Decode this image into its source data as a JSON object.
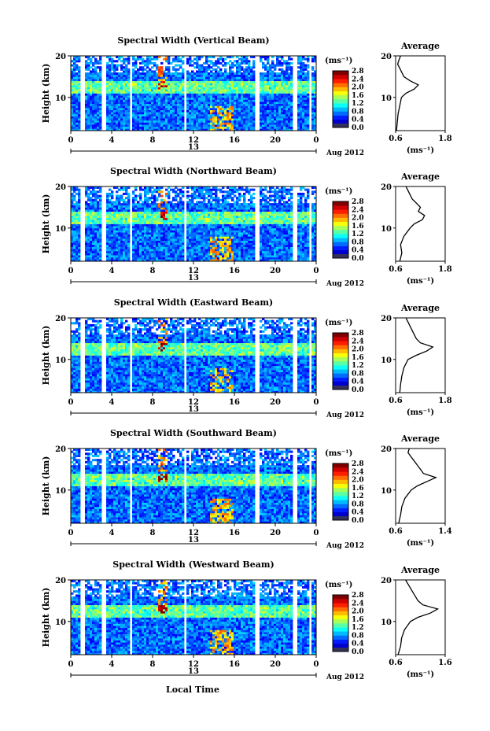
{
  "x_axis_label": "Local Time",
  "colorbar": {
    "unit": "(ms⁻¹)",
    "ticks": [
      "0.0",
      "0.4",
      "0.8",
      "1.2",
      "1.6",
      "2.0",
      "2.4",
      "2.8"
    ]
  },
  "chart_data": [
    {
      "type": "heatmap",
      "title": "Spectral Width (Vertical Beam)",
      "ylabel": "Height (km)",
      "xlabel": "",
      "x_ticks": [
        "0",
        "4",
        "8",
        "12",
        "16",
        "20",
        "0"
      ],
      "y_ticks": [
        "10",
        "20"
      ],
      "xlim": [
        0,
        24
      ],
      "ylim": [
        2,
        20
      ],
      "date_day": "13",
      "date_label": "Aug 2012",
      "colorbar_range": [
        0.0,
        2.8
      ],
      "profile": {
        "title": "Average",
        "unit_label": "(ms⁻¹)",
        "xlim": [
          0.6,
          1.8
        ],
        "x_ticks": [
          "0.6",
          "1.8"
        ],
        "y_ticks": [
          "10",
          "20"
        ],
        "heights": [
          2,
          4,
          6,
          8,
          10,
          11,
          12,
          13,
          14,
          15,
          16,
          17,
          18,
          19,
          20
        ],
        "values": [
          0.62,
          0.64,
          0.66,
          0.7,
          0.74,
          0.85,
          1.05,
          1.15,
          0.95,
          0.8,
          0.75,
          0.7,
          0.65,
          0.68,
          0.72
        ]
      }
    },
    {
      "type": "heatmap",
      "title": "Spectral Width (Northward Beam)",
      "ylabel": "Height (km)",
      "xlabel": "",
      "x_ticks": [
        "0",
        "4",
        "8",
        "12",
        "16",
        "20",
        "0"
      ],
      "y_ticks": [
        "10",
        "20"
      ],
      "xlim": [
        0,
        24
      ],
      "ylim": [
        2,
        20
      ],
      "date_day": "13",
      "date_label": "Aug 2012",
      "colorbar_range": [
        0.0,
        2.8
      ],
      "profile": {
        "title": "Average",
        "unit_label": "(ms⁻¹)",
        "xlim": [
          0.6,
          1.8
        ],
        "x_ticks": [
          "0.6",
          "1.8"
        ],
        "y_ticks": [
          "10",
          "20"
        ],
        "heights": [
          2,
          4,
          6,
          8,
          10,
          11,
          12,
          13,
          14,
          15,
          16,
          17,
          18,
          19,
          20
        ],
        "values": [
          0.7,
          0.75,
          0.72,
          0.8,
          0.95,
          1.05,
          1.25,
          1.3,
          1.15,
          1.2,
          1.1,
          1.0,
          0.95,
          0.9,
          0.85
        ]
      }
    },
    {
      "type": "heatmap",
      "title": "Spectral Width (Eastward Beam)",
      "ylabel": "Height (km)",
      "xlabel": "",
      "x_ticks": [
        "0",
        "4",
        "8",
        "12",
        "16",
        "20",
        "0"
      ],
      "y_ticks": [
        "10",
        "20"
      ],
      "xlim": [
        0,
        24
      ],
      "ylim": [
        2,
        20
      ],
      "date_day": "13",
      "date_label": "Aug 2012",
      "colorbar_range": [
        0.0,
        2.8
      ],
      "profile": {
        "title": "Average",
        "unit_label": "(ms⁻¹)",
        "xlim": [
          0.6,
          1.8
        ],
        "x_ticks": [
          "0.6",
          "1.8"
        ],
        "y_ticks": [
          "10",
          "20"
        ],
        "heights": [
          2,
          4,
          6,
          8,
          10,
          11,
          12,
          13,
          14,
          15,
          16,
          17,
          18,
          19,
          20
        ],
        "values": [
          0.7,
          0.72,
          0.75,
          0.8,
          0.9,
          1.1,
          1.35,
          1.5,
          1.2,
          1.1,
          1.05,
          1.0,
          0.95,
          0.9,
          0.85
        ]
      }
    },
    {
      "type": "heatmap",
      "title": "Spectral Width (Southward Beam)",
      "ylabel": "Height (km)",
      "xlabel": "",
      "x_ticks": [
        "0",
        "4",
        "8",
        "12",
        "16",
        "20",
        "0"
      ],
      "y_ticks": [
        "10",
        "20"
      ],
      "xlim": [
        0,
        24
      ],
      "ylim": [
        2,
        20
      ],
      "date_day": "13",
      "date_label": "Aug 2012",
      "colorbar_range": [
        0.0,
        2.8
      ],
      "profile": {
        "title": "Average",
        "unit_label": "(ms⁻¹)",
        "xlim": [
          0.6,
          1.4
        ],
        "x_ticks": [
          "0.6",
          "1.4"
        ],
        "y_ticks": [
          "10",
          "20"
        ],
        "heights": [
          2,
          4,
          6,
          8,
          10,
          11,
          12,
          13,
          14,
          15,
          16,
          17,
          18,
          19,
          20
        ],
        "values": [
          0.65,
          0.68,
          0.7,
          0.75,
          0.85,
          0.95,
          1.1,
          1.25,
          1.05,
          1.0,
          0.95,
          0.9,
          0.85,
          0.8,
          0.82
        ]
      }
    },
    {
      "type": "heatmap",
      "title": "Spectral Width (Westward Beam)",
      "ylabel": "Height (km)",
      "xlabel": "",
      "x_ticks": [
        "0",
        "4",
        "8",
        "12",
        "16",
        "20",
        "0"
      ],
      "y_ticks": [
        "10",
        "20"
      ],
      "xlim": [
        0,
        24
      ],
      "ylim": [
        2,
        20
      ],
      "date_day": "13",
      "date_label": "Aug 2012",
      "colorbar_range": [
        0.0,
        2.8
      ],
      "profile": {
        "title": "Average",
        "unit_label": "(ms⁻¹)",
        "xlim": [
          0.6,
          1.6
        ],
        "x_ticks": [
          "0.6",
          "1.6"
        ],
        "y_ticks": [
          "10",
          "20"
        ],
        "heights": [
          2,
          4,
          6,
          8,
          10,
          11,
          12,
          13,
          14,
          15,
          16,
          17,
          18,
          19,
          20
        ],
        "values": [
          0.65,
          0.7,
          0.72,
          0.78,
          0.9,
          1.05,
          1.3,
          1.45,
          1.15,
          1.05,
          1.0,
          0.95,
          0.9,
          0.85,
          0.8
        ]
      }
    }
  ]
}
